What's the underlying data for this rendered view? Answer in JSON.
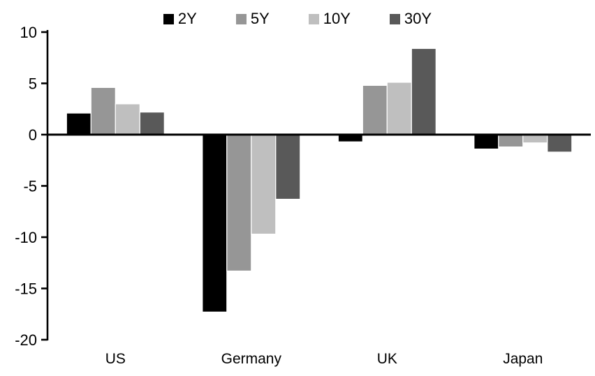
{
  "chart_data": {
    "type": "bar",
    "title": "",
    "xlabel": "",
    "ylabel": "",
    "categories": [
      "US",
      "Germany",
      "UK",
      "Japan"
    ],
    "series": [
      {
        "name": "2Y",
        "color": "#000000",
        "values": [
          2.1,
          -17.3,
          -0.7,
          -1.4
        ]
      },
      {
        "name": "5Y",
        "color": "#969696",
        "values": [
          4.6,
          -13.3,
          4.8,
          -1.2
        ]
      },
      {
        "name": "10Y",
        "color": "#bfbfbf",
        "values": [
          3.0,
          -9.7,
          5.1,
          -0.8
        ]
      },
      {
        "name": "30Y",
        "color": "#595959",
        "values": [
          2.2,
          -6.3,
          8.4,
          -1.7
        ]
      }
    ],
    "ylim": [
      -20,
      10
    ],
    "yticks": [
      10,
      5,
      0,
      -5,
      -10,
      -15,
      -20
    ],
    "grid": false,
    "legend_position": "top",
    "axis_color": "#000000",
    "background_color": "#ffffff"
  }
}
